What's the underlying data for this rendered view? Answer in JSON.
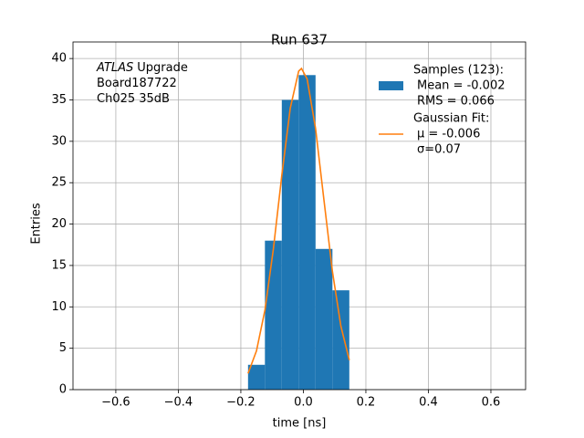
{
  "chart_data": {
    "type": "histogram",
    "title": "Run 637",
    "xlabel": "time [ns]",
    "ylabel": "Entries",
    "annotation": [
      [
        "ATLAS",
        "Upgrade"
      ],
      [
        "Board187722"
      ],
      [
        "Ch025 35dB"
      ]
    ],
    "xlim": [
      -0.737,
      0.711
    ],
    "ylim": [
      0,
      42
    ],
    "xticks": [
      {
        "value": -0.6,
        "label": "−0.6"
      },
      {
        "value": -0.4,
        "label": "−0.4"
      },
      {
        "value": -0.2,
        "label": "−0.2"
      },
      {
        "value": 0,
        "label": "0.0"
      },
      0.2,
      0.4,
      0.6
    ],
    "yticks": [
      0,
      5,
      10,
      15,
      20,
      25,
      30,
      35,
      40
    ],
    "grid": true,
    "legend": "upper right",
    "series": [
      {
        "name": [
          "Samples (123):",
          "Mean = -0.002",
          "RMS = 0.066"
        ],
        "color": "#1f77b4",
        "type": "hist",
        "bins": [
          -0.177,
          -0.123,
          -0.069,
          -0.015,
          0.039,
          0.093,
          0.147
        ],
        "values": [
          3,
          18,
          35,
          38,
          17,
          12
        ]
      },
      {
        "name": [
          "Gaussian Fit:",
          "μ = -0.006",
          "σ=0.07"
        ],
        "color": "#ff7f0e",
        "type": "line",
        "x": [
          -0.177,
          -0.15,
          -0.123,
          -0.096,
          -0.069,
          -0.042,
          -0.015,
          -0.006,
          0.012,
          0.039,
          0.066,
          0.093,
          0.12,
          0.147
        ],
        "values": [
          1.96,
          4.68,
          9.6,
          16.98,
          25.88,
          33.99,
          38.48,
          38.8,
          37.54,
          31.56,
          22.86,
          14.27,
          7.68,
          3.56
        ]
      }
    ]
  }
}
